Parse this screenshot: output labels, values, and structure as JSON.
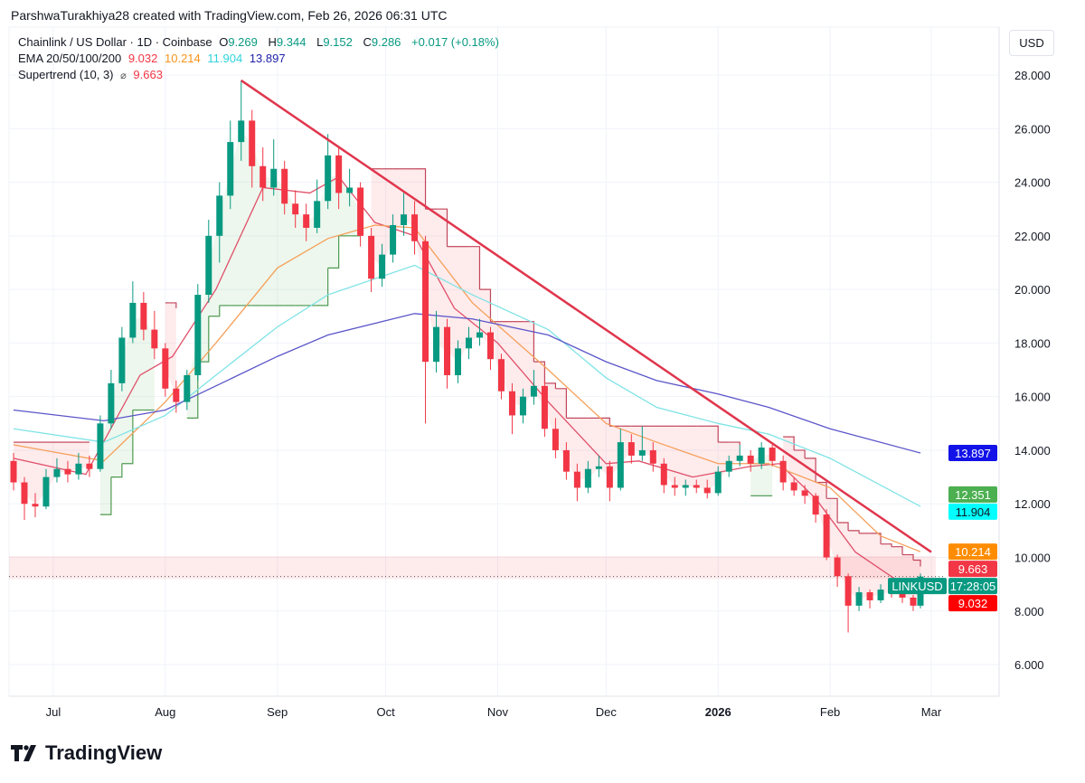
{
  "credit": "ParshwaTurakhiya28 created with TradingView.com, Feb 26, 2026 06:31 UTC",
  "legend": {
    "symbol": "Chainlink / US Dollar · 1D · Coinbase",
    "o_label": "O",
    "o": "9.269",
    "h_label": "H",
    "h": "9.344",
    "l_label": "L",
    "l": "9.152",
    "c_label": "C",
    "c": "9.286",
    "change": "+0.017 (+0.18%)",
    "ema_label": "EMA 20/50/100/200",
    "ema20": "9.032",
    "ema50": "10.214",
    "ema100": "11.904",
    "ema200": "13.897",
    "st_label": "Supertrend (10, 3)",
    "st_icon": "⌀",
    "st_value": "9.663"
  },
  "currency": "USD",
  "logo_text": "TradingView",
  "price_labels": [
    {
      "text": "13.897",
      "value": 13.897,
      "bg": "#1212e8",
      "fg": "#ffffff"
    },
    {
      "text": "12.351",
      "value": 12.351,
      "bg": "#4caf50",
      "fg": "#ffffff"
    },
    {
      "text": "11.904",
      "value": 11.904,
      "bg": "#00ffff",
      "fg": "#131722"
    },
    {
      "text": "10.214",
      "value": 10.214,
      "bg": "#ff8c00",
      "fg": "#ffffff"
    },
    {
      "text": "9.663",
      "value": 9.663,
      "bg": "#f23645",
      "fg": "#ffffff"
    },
    {
      "text": "17:28:05",
      "value": 9.286,
      "bg": "#089981",
      "fg": "#ffffff",
      "tag": "LINKUSD"
    },
    {
      "text": "9.032",
      "value": 9.032,
      "bg": "#ff0000",
      "fg": "#ffffff"
    }
  ],
  "chart_data": {
    "type": "candlestick",
    "title": "Chainlink / US Dollar · 1D · Coinbase",
    "ylim": [
      5,
      29.3
    ],
    "y_ticks": [
      "6.000",
      "8.000",
      "10.000",
      "12.000",
      "14.000",
      "16.000",
      "18.000",
      "20.000",
      "22.000",
      "24.000",
      "26.000",
      "28.000"
    ],
    "x_ticks": [
      {
        "date": "2025-07-01",
        "label": "Jul"
      },
      {
        "date": "2025-08-01",
        "label": "Aug"
      },
      {
        "date": "2025-09-01",
        "label": "Sep"
      },
      {
        "date": "2025-10-01",
        "label": "Oct"
      },
      {
        "date": "2025-11-01",
        "label": "Nov"
      },
      {
        "date": "2025-12-01",
        "label": "Dec"
      },
      {
        "date": "2026-01-01",
        "label": "2026",
        "bold": true
      },
      {
        "date": "2026-02-01",
        "label": "Feb"
      },
      {
        "date": "2026-03-01",
        "label": "Mar"
      }
    ],
    "grid": true,
    "colors": {
      "up": "#089981",
      "down": "#f23645",
      "ema20": "#e0506a",
      "ema50": "#f5a05a",
      "ema100": "#7fe3e6",
      "ema200": "#5b55c9",
      "trendline": "#e0364d",
      "st_up": "#4e9a51",
      "st_down": "#c2455a"
    },
    "candles": [
      [
        "2025-06-20",
        13.6,
        13.9,
        12.5,
        12.8
      ],
      [
        "2025-06-23",
        12.8,
        13.0,
        11.4,
        12.0
      ],
      [
        "2025-06-26",
        12.0,
        12.4,
        11.5,
        11.9
      ],
      [
        "2025-06-29",
        11.9,
        13.3,
        11.8,
        13.0
      ],
      [
        "2025-07-02",
        13.0,
        13.7,
        12.8,
        13.3
      ],
      [
        "2025-07-05",
        13.3,
        13.6,
        12.8,
        13.1
      ],
      [
        "2025-07-08",
        13.1,
        13.9,
        12.9,
        13.5
      ],
      [
        "2025-07-11",
        13.5,
        13.8,
        13.0,
        13.3
      ],
      [
        "2025-07-14",
        13.3,
        15.3,
        13.2,
        15.0
      ],
      [
        "2025-07-17",
        15.0,
        17.0,
        14.8,
        16.5
      ],
      [
        "2025-07-20",
        16.5,
        18.6,
        16.2,
        18.2
      ],
      [
        "2025-07-23",
        18.2,
        20.3,
        18.0,
        19.5
      ],
      [
        "2025-07-26",
        19.5,
        19.9,
        18.1,
        18.5
      ],
      [
        "2025-07-29",
        18.5,
        19.2,
        17.4,
        17.8
      ],
      [
        "2025-08-01",
        17.8,
        18.0,
        16.0,
        16.3
      ],
      [
        "2025-08-04",
        16.3,
        16.6,
        15.4,
        15.8
      ],
      [
        "2025-08-07",
        15.8,
        17.0,
        15.5,
        16.8
      ],
      [
        "2025-08-10",
        16.8,
        20.2,
        16.6,
        19.8
      ],
      [
        "2025-08-13",
        19.8,
        22.6,
        19.5,
        22.0
      ],
      [
        "2025-08-16",
        22.0,
        24.0,
        21.0,
        23.5
      ],
      [
        "2025-08-19",
        23.5,
        26.3,
        23.0,
        25.5
      ],
      [
        "2025-08-22",
        25.5,
        27.8,
        24.8,
        26.3
      ],
      [
        "2025-08-25",
        26.3,
        26.7,
        23.8,
        24.6
      ],
      [
        "2025-08-28",
        24.6,
        25.3,
        23.3,
        23.8
      ],
      [
        "2025-08-31",
        23.8,
        25.6,
        23.5,
        24.5
      ],
      [
        "2025-09-03",
        24.5,
        24.8,
        22.8,
        23.2
      ],
      [
        "2025-09-06",
        23.2,
        23.7,
        22.3,
        22.8
      ],
      [
        "2025-09-09",
        22.8,
        23.2,
        21.8,
        22.3
      ],
      [
        "2025-09-12",
        22.3,
        24.1,
        22.1,
        23.3
      ],
      [
        "2025-09-15",
        23.3,
        25.8,
        23.0,
        25.0
      ],
      [
        "2025-09-18",
        25.0,
        25.3,
        23.0,
        23.6
      ],
      [
        "2025-09-21",
        23.6,
        24.5,
        23.1,
        23.8
      ],
      [
        "2025-09-24",
        23.8,
        24.0,
        21.6,
        22.0
      ],
      [
        "2025-09-27",
        22.0,
        22.3,
        19.9,
        20.4
      ],
      [
        "2025-09-30",
        20.4,
        21.7,
        20.1,
        21.3
      ],
      [
        "2025-10-03",
        21.3,
        22.8,
        21.0,
        22.4
      ],
      [
        "2025-10-06",
        22.4,
        23.6,
        22.0,
        22.8
      ],
      [
        "2025-10-09",
        22.8,
        23.3,
        21.3,
        21.8
      ],
      [
        "2025-10-12",
        21.8,
        22.0,
        15.0,
        17.3
      ],
      [
        "2025-10-15",
        17.3,
        19.2,
        16.9,
        18.6
      ],
      [
        "2025-10-18",
        18.6,
        18.9,
        16.3,
        16.8
      ],
      [
        "2025-10-21",
        16.8,
        18.1,
        16.5,
        17.8
      ],
      [
        "2025-10-24",
        17.8,
        18.6,
        17.4,
        18.2
      ],
      [
        "2025-10-27",
        18.2,
        18.9,
        17.9,
        18.4
      ],
      [
        "2025-10-30",
        18.4,
        18.6,
        17.0,
        17.4
      ],
      [
        "2025-11-02",
        17.4,
        17.6,
        15.9,
        16.2
      ],
      [
        "2025-11-05",
        16.2,
        16.5,
        14.6,
        15.3
      ],
      [
        "2025-11-08",
        15.3,
        16.3,
        15.0,
        16.0
      ],
      [
        "2025-11-11",
        16.0,
        17.0,
        15.7,
        16.4
      ],
      [
        "2025-11-14",
        16.4,
        16.6,
        14.5,
        14.8
      ],
      [
        "2025-11-17",
        14.8,
        15.2,
        13.7,
        14.0
      ],
      [
        "2025-11-20",
        14.0,
        14.3,
        12.9,
        13.2
      ],
      [
        "2025-11-23",
        13.2,
        13.5,
        12.1,
        12.6
      ],
      [
        "2025-11-26",
        12.6,
        13.6,
        12.4,
        13.3
      ],
      [
        "2025-11-29",
        13.3,
        13.8,
        13.0,
        13.4
      ],
      [
        "2025-12-02",
        13.4,
        13.6,
        12.1,
        12.6
      ],
      [
        "2025-12-05",
        12.6,
        14.8,
        12.5,
        14.3
      ],
      [
        "2025-12-08",
        14.3,
        14.6,
        13.5,
        13.8
      ],
      [
        "2025-12-11",
        13.8,
        14.9,
        13.6,
        14.0
      ],
      [
        "2025-12-14",
        14.0,
        14.3,
        13.2,
        13.5
      ],
      [
        "2025-12-17",
        13.5,
        13.7,
        12.4,
        12.7
      ],
      [
        "2025-12-20",
        12.7,
        13.0,
        12.3,
        12.6
      ],
      [
        "2025-12-23",
        12.6,
        12.9,
        12.3,
        12.7
      ],
      [
        "2025-12-26",
        12.7,
        12.9,
        12.4,
        12.6
      ],
      [
        "2025-12-29",
        12.6,
        12.9,
        12.2,
        12.4
      ],
      [
        "2026-01-01",
        12.4,
        13.4,
        12.3,
        13.2
      ],
      [
        "2026-01-04",
        13.2,
        13.8,
        13.0,
        13.6
      ],
      [
        "2026-01-07",
        13.6,
        14.2,
        13.4,
        13.8
      ],
      [
        "2026-01-10",
        13.8,
        14.0,
        13.2,
        13.5
      ],
      [
        "2026-01-13",
        13.5,
        14.3,
        13.3,
        14.1
      ],
      [
        "2026-01-16",
        14.1,
        14.2,
        13.4,
        13.6
      ],
      [
        "2026-01-19",
        13.6,
        13.8,
        12.5,
        12.8
      ],
      [
        "2026-01-22",
        12.8,
        13.0,
        12.3,
        12.5
      ],
      [
        "2026-01-25",
        12.5,
        12.7,
        12.0,
        12.3
      ],
      [
        "2026-01-28",
        12.3,
        12.4,
        11.3,
        11.6
      ],
      [
        "2026-01-31",
        11.6,
        11.8,
        9.9,
        10.0
      ],
      [
        "2026-02-03",
        10.0,
        10.1,
        8.9,
        9.3
      ],
      [
        "2026-02-06",
        9.3,
        9.4,
        7.2,
        8.2
      ],
      [
        "2026-02-09",
        8.2,
        8.9,
        8.0,
        8.7
      ],
      [
        "2026-02-12",
        8.7,
        8.8,
        8.1,
        8.4
      ],
      [
        "2026-02-15",
        8.4,
        9.0,
        8.3,
        8.8
      ],
      [
        "2026-02-18",
        8.8,
        9.0,
        8.5,
        8.7
      ],
      [
        "2026-02-21",
        8.7,
        8.9,
        8.3,
        8.5
      ],
      [
        "2026-02-24",
        8.5,
        8.6,
        8.0,
        8.2
      ],
      [
        "2026-02-26",
        8.2,
        9.4,
        8.1,
        9.286
      ]
    ],
    "supertrend": [
      [
        14.3,
        "down"
      ],
      [
        14.3,
        "down"
      ],
      [
        14.3,
        "down"
      ],
      [
        14.3,
        "down"
      ],
      [
        14.3,
        "down"
      ],
      [
        14.3,
        "down"
      ],
      [
        14.3,
        "down"
      ],
      [
        14.3,
        "down"
      ],
      [
        11.6,
        "up"
      ],
      [
        13.0,
        "up"
      ],
      [
        13.5,
        "up"
      ],
      [
        15.5,
        "up"
      ],
      [
        15.5,
        "up"
      ],
      [
        15.5,
        "up"
      ],
      [
        19.5,
        "down"
      ],
      [
        19.3,
        "down"
      ],
      [
        15.2,
        "up"
      ],
      [
        17.3,
        "up"
      ],
      [
        19.0,
        "up"
      ],
      [
        19.4,
        "up"
      ],
      [
        19.4,
        "up"
      ],
      [
        19.4,
        "up"
      ],
      [
        19.4,
        "up"
      ],
      [
        19.4,
        "up"
      ],
      [
        19.4,
        "up"
      ],
      [
        19.4,
        "up"
      ],
      [
        19.4,
        "up"
      ],
      [
        19.4,
        "up"
      ],
      [
        19.4,
        "up"
      ],
      [
        20.8,
        "up"
      ],
      [
        22.0,
        "up"
      ],
      [
        22.0,
        "up"
      ],
      [
        22.0,
        "up"
      ],
      [
        24.5,
        "down"
      ],
      [
        24.5,
        "down"
      ],
      [
        24.5,
        "down"
      ],
      [
        24.5,
        "down"
      ],
      [
        24.5,
        "down"
      ],
      [
        23.0,
        "down"
      ],
      [
        23.0,
        "down"
      ],
      [
        21.6,
        "down"
      ],
      [
        21.6,
        "down"
      ],
      [
        21.6,
        "down"
      ],
      [
        20.0,
        "down"
      ],
      [
        18.8,
        "down"
      ],
      [
        18.8,
        "down"
      ],
      [
        18.8,
        "down"
      ],
      [
        18.8,
        "down"
      ],
      [
        17.3,
        "down"
      ],
      [
        16.5,
        "down"
      ],
      [
        16.3,
        "down"
      ],
      [
        15.2,
        "down"
      ],
      [
        15.2,
        "down"
      ],
      [
        15.2,
        "down"
      ],
      [
        15.2,
        "down"
      ],
      [
        14.9,
        "down"
      ],
      [
        14.9,
        "down"
      ],
      [
        14.9,
        "down"
      ],
      [
        14.9,
        "down"
      ],
      [
        14.9,
        "down"
      ],
      [
        14.9,
        "down"
      ],
      [
        14.9,
        "down"
      ],
      [
        14.9,
        "down"
      ],
      [
        14.9,
        "down"
      ],
      [
        14.9,
        "down"
      ],
      [
        14.3,
        "down"
      ],
      [
        14.3,
        "down"
      ],
      [
        14.2,
        "down"
      ],
      [
        12.3,
        "up"
      ],
      [
        12.3,
        "up"
      ],
      [
        12.3,
        "up"
      ],
      [
        14.5,
        "down"
      ],
      [
        14.0,
        "down"
      ],
      [
        13.7,
        "down"
      ],
      [
        12.8,
        "down"
      ],
      [
        12.2,
        "down"
      ],
      [
        11.3,
        "down"
      ],
      [
        11.0,
        "down"
      ],
      [
        10.9,
        "down"
      ],
      [
        10.9,
        "down"
      ],
      [
        10.5,
        "down"
      ],
      [
        10.4,
        "down"
      ],
      [
        10.1,
        "down"
      ],
      [
        9.9,
        "down"
      ],
      [
        9.663,
        "down"
      ]
    ],
    "ema": [
      {
        "name": "EMA 20",
        "key": "ema20",
        "points": [
          [
            "2025-06-20",
            13.7
          ],
          [
            "2025-07-10",
            13.1
          ],
          [
            "2025-07-25",
            16.8
          ],
          [
            "2025-08-03",
            17.5
          ],
          [
            "2025-08-15",
            20.0
          ],
          [
            "2025-08-28",
            23.8
          ],
          [
            "2025-09-10",
            23.6
          ],
          [
            "2025-09-18",
            24.2
          ],
          [
            "2025-09-28",
            22.5
          ],
          [
            "2025-10-09",
            22.0
          ],
          [
            "2025-10-20",
            19.3
          ],
          [
            "2025-11-01",
            18.0
          ],
          [
            "2025-11-15",
            15.8
          ],
          [
            "2025-12-01",
            13.5
          ],
          [
            "2025-12-10",
            13.6
          ],
          [
            "2025-12-25",
            13.0
          ],
          [
            "2026-01-10",
            13.4
          ],
          [
            "2026-01-18",
            13.5
          ],
          [
            "2026-01-28",
            12.2
          ],
          [
            "2026-02-08",
            10.2
          ],
          [
            "2026-02-20",
            9.1
          ],
          [
            "2026-02-26",
            9.032
          ]
        ]
      },
      {
        "name": "EMA 50",
        "key": "ema50",
        "points": [
          [
            "2025-06-20",
            14.2
          ],
          [
            "2025-07-15",
            13.6
          ],
          [
            "2025-08-01",
            15.8
          ],
          [
            "2025-08-15",
            18.0
          ],
          [
            "2025-09-01",
            20.8
          ],
          [
            "2025-09-15",
            21.9
          ],
          [
            "2025-09-28",
            22.4
          ],
          [
            "2025-10-09",
            22.3
          ],
          [
            "2025-10-25",
            19.5
          ],
          [
            "2025-11-15",
            17.0
          ],
          [
            "2025-12-01",
            15.0
          ],
          [
            "2025-12-15",
            14.3
          ],
          [
            "2026-01-01",
            13.5
          ],
          [
            "2026-01-15",
            13.5
          ],
          [
            "2026-02-01",
            12.6
          ],
          [
            "2026-02-15",
            10.8
          ],
          [
            "2026-02-26",
            10.214
          ]
        ]
      },
      {
        "name": "EMA 100",
        "key": "ema100",
        "points": [
          [
            "2025-06-20",
            14.8
          ],
          [
            "2025-07-15",
            14.3
          ],
          [
            "2025-08-01",
            15.3
          ],
          [
            "2025-08-15",
            16.8
          ],
          [
            "2025-09-01",
            18.6
          ],
          [
            "2025-09-15",
            19.8
          ],
          [
            "2025-10-09",
            20.9
          ],
          [
            "2025-10-25",
            19.8
          ],
          [
            "2025-11-15",
            18.5
          ],
          [
            "2025-12-01",
            16.7
          ],
          [
            "2025-12-15",
            15.6
          ],
          [
            "2026-01-01",
            15.0
          ],
          [
            "2026-01-15",
            14.6
          ],
          [
            "2026-02-01",
            13.7
          ],
          [
            "2026-02-26",
            11.904
          ]
        ]
      },
      {
        "name": "EMA 200",
        "key": "ema200",
        "points": [
          [
            "2025-06-20",
            15.5
          ],
          [
            "2025-07-15",
            15.1
          ],
          [
            "2025-08-01",
            15.5
          ],
          [
            "2025-08-15",
            16.4
          ],
          [
            "2025-09-01",
            17.5
          ],
          [
            "2025-09-15",
            18.3
          ],
          [
            "2025-10-09",
            19.1
          ],
          [
            "2025-10-25",
            18.9
          ],
          [
            "2025-11-15",
            18.3
          ],
          [
            "2025-12-01",
            17.3
          ],
          [
            "2025-12-15",
            16.6
          ],
          [
            "2026-01-01",
            16.1
          ],
          [
            "2026-01-15",
            15.6
          ],
          [
            "2026-02-01",
            14.8
          ],
          [
            "2026-02-26",
            13.897
          ]
        ]
      }
    ],
    "trendline": [
      [
        "2025-08-22",
        27.8
      ],
      [
        "2026-03-01",
        10.2
      ]
    ],
    "last_price": 9.286
  }
}
